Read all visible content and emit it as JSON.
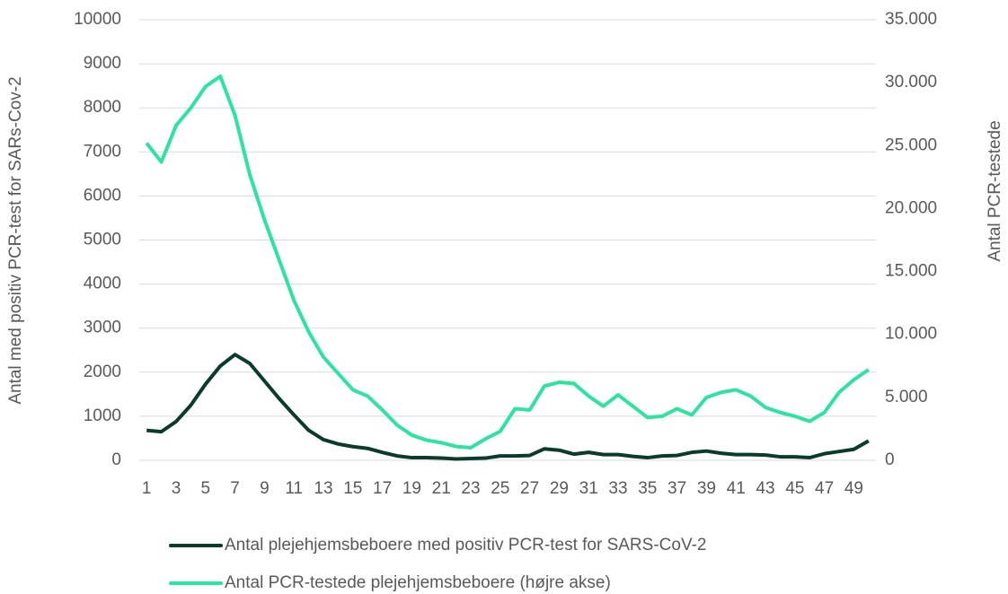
{
  "chart_data": {
    "type": "line",
    "y_label": "Antal med positiv PCR-test for SARs-Cov-2",
    "y2_label": "Antal PCR-testede",
    "x": [
      1,
      2,
      3,
      4,
      5,
      6,
      7,
      8,
      9,
      10,
      11,
      12,
      13,
      14,
      15,
      16,
      17,
      18,
      19,
      20,
      21,
      22,
      23,
      24,
      25,
      26,
      27,
      28,
      29,
      30,
      31,
      32,
      33,
      34,
      35,
      36,
      37,
      38,
      39,
      40,
      41,
      42,
      43,
      44,
      45,
      46,
      47,
      48,
      49,
      50
    ],
    "xlim": [
      0.5,
      50.5
    ],
    "xticks": [
      1,
      3,
      5,
      7,
      9,
      11,
      13,
      15,
      17,
      19,
      21,
      23,
      25,
      27,
      29,
      31,
      33,
      35,
      37,
      39,
      41,
      43,
      45,
      47,
      49
    ],
    "ylim": [
      0,
      10000
    ],
    "yticks": [
      0,
      1000,
      2000,
      3000,
      4000,
      5000,
      6000,
      7000,
      8000,
      9000,
      10000
    ],
    "y2lim": [
      0,
      35000
    ],
    "y2ticks": [
      0,
      {
        "value": 5000,
        "label": "5.000"
      },
      {
        "value": 10000,
        "label": "10.000"
      },
      {
        "value": 15000,
        "label": "15.000"
      },
      {
        "value": 20000,
        "label": "20.000"
      },
      {
        "value": 25000,
        "label": "25.000"
      },
      {
        "value": 30000,
        "label": "30.000"
      },
      {
        "value": 35000,
        "label": "35.000"
      }
    ],
    "grid": true,
    "series": [
      {
        "name": "Antal plejehjemsbeboere med positiv PCR-test for SARS-CoV-2",
        "color": "#0b3b2c",
        "axis": "y",
        "values": [
          680,
          650,
          880,
          1250,
          1730,
          2140,
          2400,
          2200,
          1800,
          1400,
          1030,
          680,
          470,
          370,
          310,
          270,
          180,
          100,
          60,
          60,
          50,
          30,
          40,
          50,
          100,
          100,
          110,
          260,
          230,
          140,
          180,
          130,
          130,
          90,
          60,
          100,
          110,
          180,
          210,
          160,
          130,
          130,
          120,
          80,
          80,
          60,
          150,
          200,
          250,
          440
        ]
      },
      {
        "name": "Antal PCR-testede plejehjemsbeboere (højre akse)",
        "color": "#2ee3a0",
        "axis": "y2",
        "values": [
          25200,
          23700,
          26600,
          28000,
          29700,
          30500,
          27400,
          22700,
          19100,
          15900,
          12700,
          10200,
          8200,
          6900,
          5600,
          5100,
          4000,
          2800,
          2000,
          1600,
          1400,
          1100,
          1000,
          1700,
          2300,
          4100,
          4000,
          5900,
          6200,
          6100,
          5100,
          4300,
          5200,
          4300,
          3400,
          3500,
          4100,
          3600,
          5000,
          5400,
          5600,
          5100,
          4200,
          3800,
          3500,
          3100,
          3800,
          5400,
          6400,
          7200
        ]
      }
    ]
  }
}
